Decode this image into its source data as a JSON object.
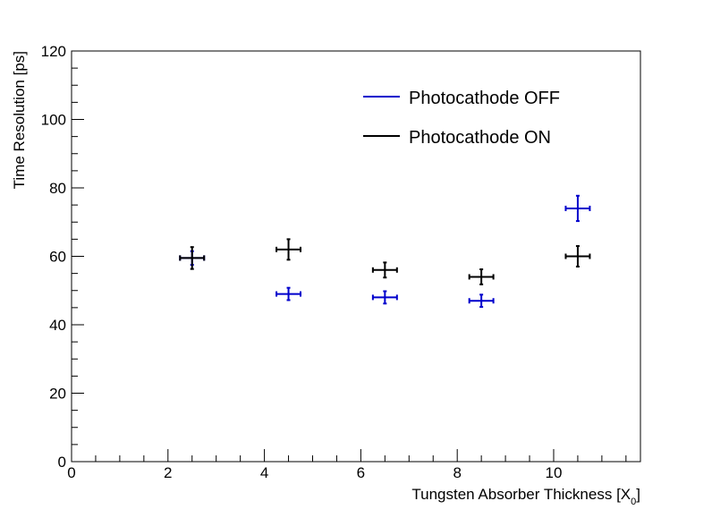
{
  "chart_data": {
    "type": "scatter",
    "title": "",
    "xlabel": "Tungsten Absorber Thickness [X",
    "xlabel_sub": "0",
    "xlabel_close": "]",
    "ylabel": "Time Resolution [ps]",
    "xlim": [
      0,
      11.8
    ],
    "ylim": [
      0,
      120
    ],
    "x_ticks": [
      0,
      2,
      4,
      6,
      8,
      10
    ],
    "x_tick_labels": [
      "0",
      "2",
      "4",
      "6",
      "8",
      "10"
    ],
    "y_ticks": [
      0,
      20,
      40,
      60,
      80,
      100,
      120
    ],
    "y_tick_labels": [
      "0",
      "20",
      "40",
      "60",
      "80",
      "100",
      "120"
    ],
    "legend_position": "top-right",
    "grid": false,
    "series": [
      {
        "name": "Photocathode OFF",
        "color": "#0000cc",
        "points": [
          {
            "x": 2.5,
            "y": 59.5,
            "xerr": 0.25,
            "yerr": 2.0
          },
          {
            "x": 4.5,
            "y": 49.0,
            "xerr": 0.25,
            "yerr": 1.8
          },
          {
            "x": 6.5,
            "y": 48.0,
            "xerr": 0.25,
            "yerr": 1.8
          },
          {
            "x": 8.5,
            "y": 47.0,
            "xerr": 0.25,
            "yerr": 1.8
          },
          {
            "x": 10.5,
            "y": 74.0,
            "xerr": 0.25,
            "yerr": 3.7
          }
        ]
      },
      {
        "name": "Photocathode ON",
        "color": "#000000",
        "points": [
          {
            "x": 2.5,
            "y": 59.5,
            "xerr": 0.25,
            "yerr": 3.2
          },
          {
            "x": 4.5,
            "y": 62.0,
            "xerr": 0.25,
            "yerr": 3.0
          },
          {
            "x": 6.5,
            "y": 56.0,
            "xerr": 0.25,
            "yerr": 2.2
          },
          {
            "x": 8.5,
            "y": 54.0,
            "xerr": 0.25,
            "yerr": 2.2
          },
          {
            "x": 10.5,
            "y": 60.0,
            "xerr": 0.25,
            "yerr": 3.0
          }
        ]
      }
    ]
  }
}
